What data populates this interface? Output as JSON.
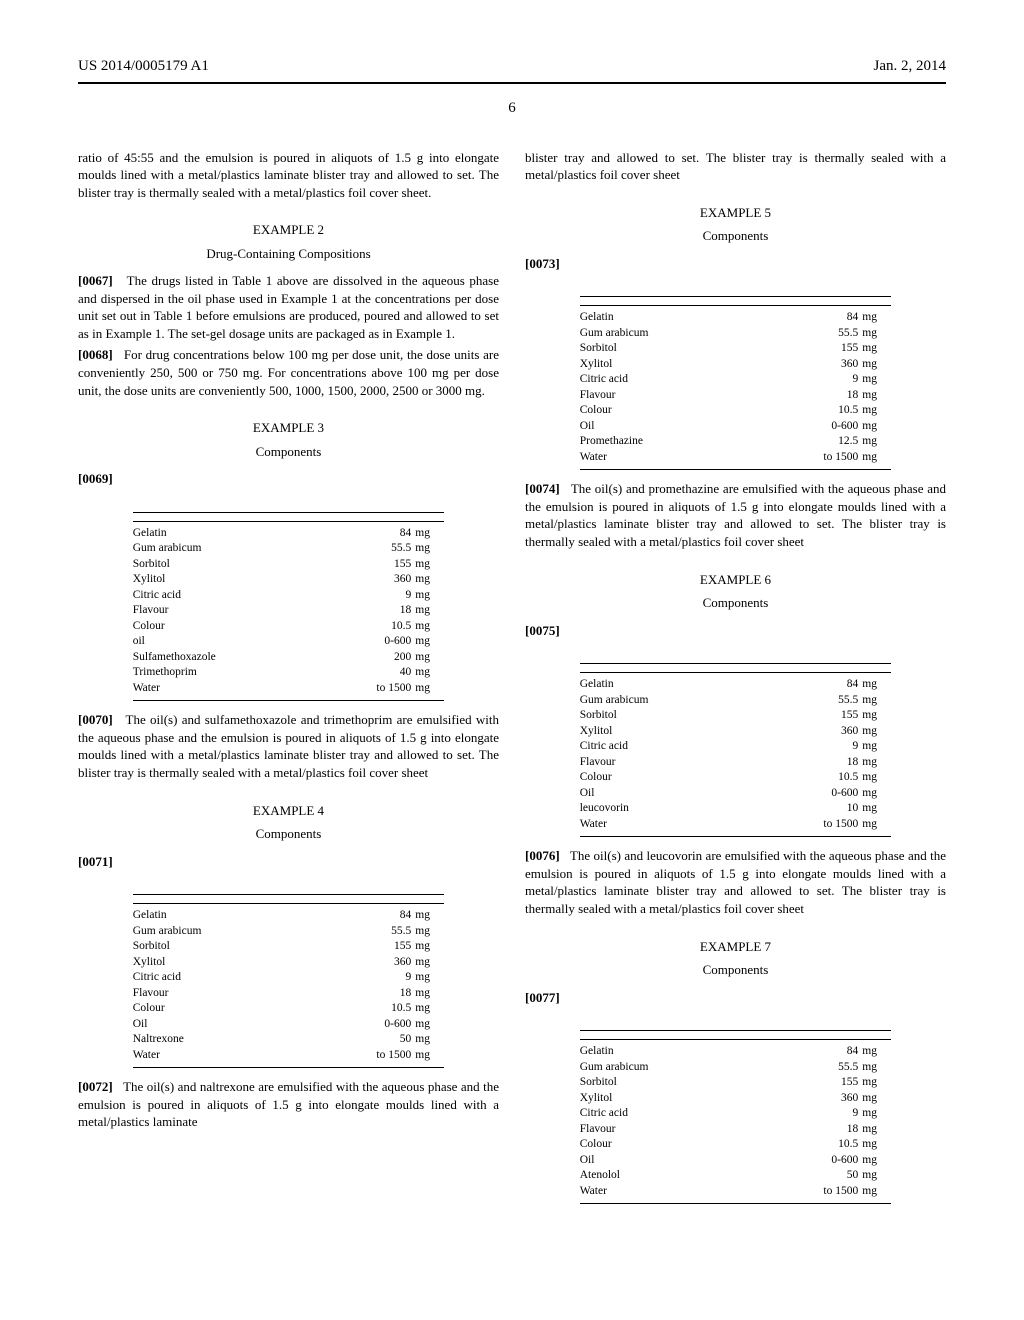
{
  "header": {
    "left": "US 2014/0005179 A1",
    "right": "Jan. 2, 2014"
  },
  "page_number": "6",
  "left_column": {
    "cont_text": "ratio of 45:55 and the emulsion is poured in aliquots of 1.5 g into elongate moulds lined with a metal/plastics laminate blister tray and allowed to set. The blister tray is thermally sealed with a metal/plastics foil cover sheet.",
    "ex2": {
      "title": "EXAMPLE 2",
      "subtitle": "Drug-Containing Compositions"
    },
    "p67": {
      "num": "[0067]",
      "text": "The drugs listed in Table 1 above are dissolved in the aqueous phase and dispersed in the oil phase used in Example 1 at the concentrations per dose unit set out in Table 1 before emulsions are produced, poured and allowed to set as in Example 1. The set-gel dosage units are packaged as in Example 1."
    },
    "p68": {
      "num": "[0068]",
      "text": "For drug concentrations below 100 mg per dose unit, the dose units are conveniently 250, 500 or 750 mg. For concentrations above 100 mg per dose unit, the dose units are conveniently 500, 1000, 1500, 2000, 2500 or 3000 mg."
    },
    "ex3": {
      "title": "EXAMPLE 3",
      "subtitle": "Components",
      "pnum": "[0069]",
      "rows": [
        {
          "n": "Gelatin",
          "v": "84",
          "u": "mg"
        },
        {
          "n": "Gum arabicum",
          "v": "55.5",
          "u": "mg"
        },
        {
          "n": "Sorbitol",
          "v": "155",
          "u": "mg"
        },
        {
          "n": "Xylitol",
          "v": "360",
          "u": "mg"
        },
        {
          "n": "Citric acid",
          "v": "9",
          "u": "mg"
        },
        {
          "n": "Flavour",
          "v": "18",
          "u": "mg"
        },
        {
          "n": "Colour",
          "v": "10.5",
          "u": "mg"
        },
        {
          "n": "oil",
          "v": "0-600",
          "u": "mg"
        },
        {
          "n": "Sulfamethoxazole",
          "v": "200",
          "u": "mg"
        },
        {
          "n": "Trimethoprim",
          "v": "40",
          "u": "mg"
        },
        {
          "n": "Water",
          "v": "to 1500",
          "u": "mg"
        }
      ]
    },
    "p70": {
      "num": "[0070]",
      "text": "The oil(s) and sulfamethoxazole and trimethoprim are emulsified with the aqueous phase and the emulsion is poured in aliquots of 1.5 g into elongate moulds lined with a metal/plastics laminate blister tray and allowed to set. The blister tray is thermally sealed with a metal/plastics foil cover sheet"
    },
    "ex4": {
      "title": "EXAMPLE 4",
      "subtitle": "Components",
      "pnum": "[0071]",
      "rows": [
        {
          "n": "Gelatin",
          "v": "84",
          "u": "mg"
        },
        {
          "n": "Gum arabicum",
          "v": "55.5",
          "u": "mg"
        },
        {
          "n": "Sorbitol",
          "v": "155",
          "u": "mg"
        },
        {
          "n": "Xylitol",
          "v": "360",
          "u": "mg"
        },
        {
          "n": "Citric acid",
          "v": "9",
          "u": "mg"
        },
        {
          "n": "Flavour",
          "v": "18",
          "u": "mg"
        },
        {
          "n": "Colour",
          "v": "10.5",
          "u": "mg"
        },
        {
          "n": "Oil",
          "v": "0-600",
          "u": "mg"
        },
        {
          "n": "Naltrexone",
          "v": "50",
          "u": "mg"
        },
        {
          "n": "Water",
          "v": "to 1500",
          "u": "mg"
        }
      ]
    },
    "p72": {
      "num": "[0072]",
      "text": "The oil(s) and naltrexone are emulsified with the aqueous phase and the emulsion is poured in aliquots of 1.5 g into elongate moulds lined with a metal/plastics laminate"
    }
  },
  "right_column": {
    "cont_text": "blister tray and allowed to set. The blister tray is thermally sealed with a metal/plastics foil cover sheet",
    "ex5": {
      "title": "EXAMPLE 5",
      "subtitle": "Components",
      "pnum": "[0073]",
      "rows": [
        {
          "n": "Gelatin",
          "v": "84",
          "u": "mg"
        },
        {
          "n": "Gum arabicum",
          "v": "55.5",
          "u": "mg"
        },
        {
          "n": "Sorbitol",
          "v": "155",
          "u": "mg"
        },
        {
          "n": "Xylitol",
          "v": "360",
          "u": "mg"
        },
        {
          "n": "Citric acid",
          "v": "9",
          "u": "mg"
        },
        {
          "n": "Flavour",
          "v": "18",
          "u": "mg"
        },
        {
          "n": "Colour",
          "v": "10.5",
          "u": "mg"
        },
        {
          "n": "Oil",
          "v": "0-600",
          "u": "mg"
        },
        {
          "n": "Promethazine",
          "v": "12.5",
          "u": "mg"
        },
        {
          "n": "Water",
          "v": "to 1500",
          "u": "mg"
        }
      ]
    },
    "p74": {
      "num": "[0074]",
      "text": "The oil(s) and promethazine are emulsified with the aqueous phase and the emulsion is poured in aliquots of 1.5 g into elongate moulds lined with a metal/plastics laminate blister tray and allowed to set. The blister tray is thermally sealed with a metal/plastics foil cover sheet"
    },
    "ex6": {
      "title": "EXAMPLE 6",
      "subtitle": "Components",
      "pnum": "[0075]",
      "rows": [
        {
          "n": "Gelatin",
          "v": "84",
          "u": "mg"
        },
        {
          "n": "Gum arabicum",
          "v": "55.5",
          "u": "mg"
        },
        {
          "n": "Sorbitol",
          "v": "155",
          "u": "mg"
        },
        {
          "n": "Xylitol",
          "v": "360",
          "u": "mg"
        },
        {
          "n": "Citric acid",
          "v": "9",
          "u": "mg"
        },
        {
          "n": "Flavour",
          "v": "18",
          "u": "mg"
        },
        {
          "n": "Colour",
          "v": "10.5",
          "u": "mg"
        },
        {
          "n": "Oil",
          "v": "0-600",
          "u": "mg"
        },
        {
          "n": "leucovorin",
          "v": "10",
          "u": "mg"
        },
        {
          "n": "Water",
          "v": "to 1500",
          "u": "mg"
        }
      ]
    },
    "p76": {
      "num": "[0076]",
      "text": "The oil(s) and leucovorin are emulsified with the aqueous phase and the emulsion is poured in aliquots of 1.5 g into elongate moulds lined with a metal/plastics laminate blister tray and allowed to set. The blister tray is thermally sealed with a metal/plastics foil cover sheet"
    },
    "ex7": {
      "title": "EXAMPLE 7",
      "subtitle": "Components",
      "pnum": "[0077]",
      "rows": [
        {
          "n": "Gelatin",
          "v": "84",
          "u": "mg"
        },
        {
          "n": "Gum arabicum",
          "v": "55.5",
          "u": "mg"
        },
        {
          "n": "Sorbitol",
          "v": "155",
          "u": "mg"
        },
        {
          "n": "Xylitol",
          "v": "360",
          "u": "mg"
        },
        {
          "n": "Citric acid",
          "v": "9",
          "u": "mg"
        },
        {
          "n": "Flavour",
          "v": "18",
          "u": "mg"
        },
        {
          "n": "Colour",
          "v": "10.5",
          "u": "mg"
        },
        {
          "n": "Oil",
          "v": "0-600",
          "u": "mg"
        },
        {
          "n": "Atenolol",
          "v": "50",
          "u": "mg"
        },
        {
          "n": "Water",
          "v": "to 1500",
          "u": "mg"
        }
      ]
    }
  }
}
